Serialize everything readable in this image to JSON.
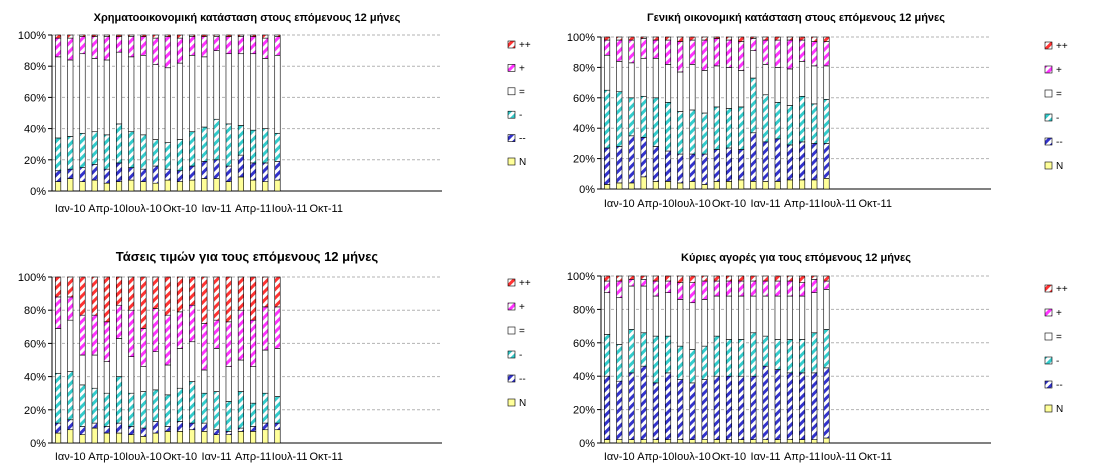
{
  "colors": {
    "N": "#ffff99",
    "mm": "#3333cc",
    "m": "#33cccc",
    "eq": "#ffffff",
    "p": "#ff33ff",
    "pp": "#ff3333"
  },
  "chart_data": [
    {
      "type": "bar",
      "stacked": true,
      "title": "Χρηματοοικονομική κατάσταση στους επόμενους 12 μήνες",
      "x_tick_labels": [
        "Ιαν-10",
        "Απρ-10",
        "Ιουλ-10",
        "Οκτ-10",
        "Ιαν-11",
        "Απρ-11",
        "Ιουλ-11",
        "Οκτ-11"
      ],
      "y_tick_labels": [
        "0%",
        "20%",
        "40%",
        "60%",
        "80%",
        "100%"
      ],
      "ylim": [
        0,
        100
      ],
      "legend_position": "right",
      "legend": [
        "++",
        "+",
        "=",
        "-",
        "--",
        "N"
      ],
      "series": [
        {
          "name": "N",
          "values": [
            6,
            8,
            6,
            7,
            5,
            6,
            7,
            6,
            5,
            7,
            6,
            7,
            8,
            8,
            6,
            9,
            7,
            6,
            7
          ]
        },
        {
          "name": "--",
          "values": [
            7,
            6,
            9,
            10,
            9,
            12,
            8,
            8,
            11,
            7,
            7,
            9,
            11,
            12,
            10,
            14,
            11,
            12,
            12
          ]
        },
        {
          "name": "-",
          "values": [
            21,
            21,
            22,
            21,
            22,
            25,
            23,
            22,
            17,
            17,
            20,
            22,
            22,
            26,
            27,
            19,
            21,
            22,
            18
          ]
        },
        {
          "name": "=",
          "values": [
            52,
            49,
            51,
            47,
            48,
            46,
            48,
            51,
            48,
            48,
            49,
            49,
            45,
            44,
            45,
            46,
            49,
            45,
            50
          ]
        },
        {
          "name": "+",
          "values": [
            12,
            14,
            11,
            14,
            15,
            10,
            13,
            12,
            17,
            20,
            16,
            12,
            13,
            9,
            11,
            11,
            11,
            13,
            12
          ]
        },
        {
          "name": "++",
          "values": [
            2,
            2,
            1,
            1,
            1,
            1,
            1,
            1,
            2,
            1,
            2,
            1,
            1,
            1,
            1,
            1,
            1,
            2,
            1
          ]
        }
      ]
    },
    {
      "type": "bar",
      "stacked": true,
      "title": "Γενική οικονομική κατάσταση στους επόμενους 12 μήνες",
      "x_tick_labels": [
        "Ιαν-10",
        "Απρ-10",
        "Ιουλ-10",
        "Οκτ-10",
        "Ιαν-11",
        "Απρ-11",
        "Ιουλ-11",
        "Οκτ-11"
      ],
      "y_tick_labels": [
        "0%",
        "20%",
        "40%",
        "60%",
        "80%",
        "100%"
      ],
      "ylim": [
        0,
        100
      ],
      "legend_position": "right",
      "legend": [
        "++",
        "+",
        "=",
        "-",
        "--",
        "N"
      ],
      "series": [
        {
          "name": "N",
          "values": [
            3,
            4,
            4,
            8,
            5,
            5,
            4,
            5,
            3,
            5,
            5,
            6,
            5,
            5,
            5,
            6,
            6,
            6,
            7
          ]
        },
        {
          "name": "--",
          "values": [
            24,
            24,
            31,
            26,
            23,
            20,
            19,
            18,
            20,
            21,
            22,
            20,
            32,
            26,
            28,
            23,
            25,
            24,
            23
          ]
        },
        {
          "name": "-",
          "values": [
            38,
            36,
            25,
            27,
            32,
            32,
            28,
            29,
            27,
            28,
            26,
            28,
            36,
            31,
            24,
            26,
            30,
            26,
            29
          ]
        },
        {
          "name": "=",
          "values": [
            23,
            20,
            23,
            25,
            26,
            25,
            26,
            30,
            28,
            27,
            27,
            24,
            18,
            20,
            23,
            24,
            23,
            25,
            22
          ]
        },
        {
          "name": "+",
          "values": [
            10,
            14,
            15,
            13,
            12,
            16,
            20,
            16,
            20,
            18,
            18,
            19,
            8,
            16,
            18,
            19,
            14,
            16,
            16
          ]
        },
        {
          "name": "++",
          "values": [
            2,
            2,
            2,
            1,
            2,
            2,
            3,
            2,
            2,
            1,
            2,
            3,
            1,
            2,
            2,
            2,
            2,
            3,
            3
          ]
        }
      ]
    },
    {
      "type": "bar",
      "stacked": true,
      "title": "Τάσεις τιμών για τους επόμενους 12 μήνες",
      "x_tick_labels": [
        "Ιαν-10",
        "Απρ-10",
        "Ιουλ-10",
        "Οκτ-10",
        "Ιαν-11",
        "Απρ-11",
        "Ιουλ-11",
        "Οκτ-11"
      ],
      "y_tick_labels": [
        "0%",
        "20%",
        "40%",
        "60%",
        "80%",
        "100%"
      ],
      "ylim": [
        0,
        100
      ],
      "legend_position": "right",
      "legend": [
        "++",
        "+",
        "=",
        "-",
        "--",
        "N"
      ],
      "series": [
        {
          "name": "N",
          "values": [
            6,
            8,
            5,
            9,
            6,
            6,
            5,
            4,
            6,
            7,
            7,
            8,
            7,
            5,
            5,
            7,
            7,
            8,
            8
          ]
        },
        {
          "name": "--",
          "values": [
            6,
            6,
            5,
            3,
            4,
            6,
            5,
            5,
            7,
            3,
            6,
            4,
            5,
            3,
            2,
            2,
            3,
            4,
            4
          ]
        },
        {
          "name": "-",
          "values": [
            30,
            29,
            25,
            21,
            20,
            28,
            20,
            22,
            19,
            19,
            20,
            25,
            18,
            23,
            18,
            22,
            14,
            18,
            16
          ]
        },
        {
          "name": "=",
          "values": [
            27,
            31,
            18,
            20,
            19,
            23,
            22,
            15,
            23,
            18,
            24,
            24,
            14,
            26,
            21,
            19,
            22,
            26,
            29
          ]
        },
        {
          "name": "+",
          "values": [
            19,
            14,
            24,
            24,
            24,
            20,
            28,
            23,
            26,
            30,
            22,
            22,
            28,
            17,
            27,
            30,
            28,
            26,
            25
          ]
        },
        {
          "name": "++",
          "values": [
            12,
            12,
            23,
            23,
            27,
            17,
            20,
            31,
            19,
            23,
            21,
            17,
            28,
            26,
            27,
            20,
            26,
            18,
            18
          ]
        }
      ]
    },
    {
      "type": "bar",
      "stacked": true,
      "title": "Κύριες αγορές για τους επόμενους 12 μήνες",
      "x_tick_labels": [
        "Ιαν-10",
        "Απρ-10",
        "Ιουλ-10",
        "Οκτ-10",
        "Ιαν-11",
        "Απρ-11",
        "Ιουλ-11",
        "Οκτ-11"
      ],
      "y_tick_labels": [
        "0%",
        "20%",
        "40%",
        "60%",
        "80%",
        "100%"
      ],
      "ylim": [
        0,
        100
      ],
      "legend_position": "right",
      "legend": [
        "++",
        "+",
        "=",
        "-",
        "--",
        "N"
      ],
      "series": [
        {
          "name": "N",
          "values": [
            2,
            2,
            2,
            2,
            2,
            2,
            2,
            2,
            2,
            2,
            2,
            2,
            2,
            2,
            2,
            2,
            2,
            2,
            3
          ]
        },
        {
          "name": "--",
          "values": [
            38,
            35,
            40,
            44,
            34,
            40,
            36,
            34,
            36,
            38,
            38,
            38,
            38,
            44,
            42,
            40,
            40,
            40,
            42
          ]
        },
        {
          "name": "-",
          "values": [
            25,
            22,
            26,
            20,
            28,
            22,
            20,
            20,
            20,
            24,
            22,
            22,
            26,
            18,
            18,
            20,
            20,
            24,
            23
          ]
        },
        {
          "name": "=",
          "values": [
            25,
            28,
            26,
            28,
            24,
            26,
            28,
            28,
            28,
            24,
            26,
            26,
            22,
            24,
            26,
            26,
            26,
            24,
            24
          ]
        },
        {
          "name": "+",
          "values": [
            7,
            10,
            4,
            4,
            9,
            7,
            10,
            12,
            11,
            9,
            9,
            9,
            9,
            9,
            9,
            9,
            8,
            8,
            5
          ]
        },
        {
          "name": "++",
          "values": [
            3,
            3,
            2,
            2,
            3,
            3,
            4,
            4,
            3,
            3,
            3,
            3,
            3,
            3,
            3,
            3,
            4,
            2,
            3
          ]
        }
      ]
    }
  ]
}
